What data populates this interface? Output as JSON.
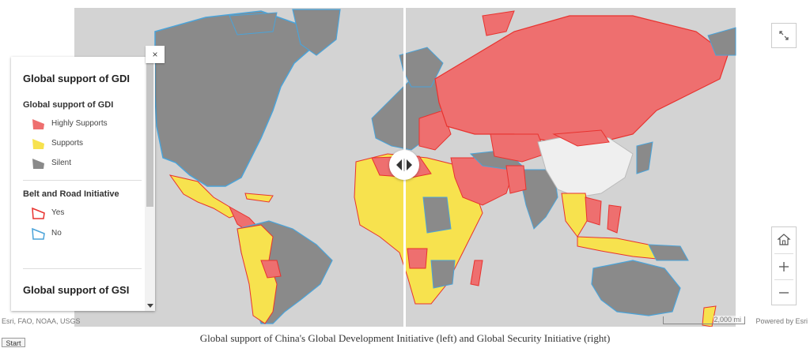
{
  "legend": {
    "main_title": "Global support of GDI",
    "layer_title": "Global support of GDI",
    "items": [
      {
        "label": "Highly Supports",
        "color": "#ee6f6f"
      },
      {
        "label": "Supports",
        "color": "#f7e24e"
      },
      {
        "label": "Silent",
        "color": "#8a8a8a"
      }
    ],
    "bri_title": "Belt and Road Initiative",
    "bri_items": [
      {
        "label": "Yes",
        "color": "#e8322e"
      },
      {
        "label": "No",
        "color": "#4aa3d9"
      }
    ],
    "second_title": "Global support of GSI"
  },
  "controls": {
    "close_glyph": "×",
    "expand_icon": "expand-icon",
    "home_icon": "home-icon",
    "zoom_in_glyph": "+",
    "zoom_out_glyph": "−"
  },
  "map": {
    "ocean_color": "#d3d3d3",
    "land_colors": {
      "highly": "#ee6f6f",
      "supports": "#f7e24e",
      "silent": "#8a8a8a",
      "none": "#efefef"
    }
  },
  "attribution": {
    "left": "Esri, FAO, NOAA, USGS",
    "right": "Powered by Esri"
  },
  "scale": {
    "label": "2,000 mi"
  },
  "caption": "Global support of China's Global Development Initiative (left) and Global Security Initiative (right)",
  "start": "Start"
}
